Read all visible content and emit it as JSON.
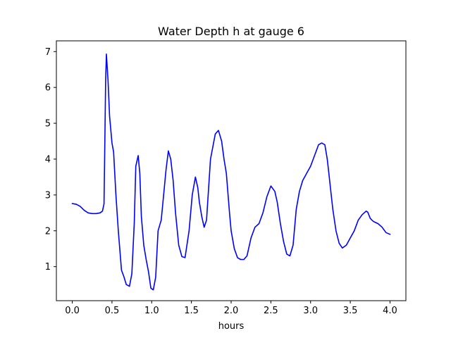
{
  "chart_data": {
    "type": "line",
    "title": "Water Depth h at gauge 6",
    "xlabel": "hours",
    "ylabel": "",
    "xlim": [
      -0.2,
      4.2
    ],
    "ylim": [
      0.05,
      7.3
    ],
    "xticks": [
      0.0,
      0.5,
      1.0,
      1.5,
      2.0,
      2.5,
      3.0,
      3.5,
      4.0
    ],
    "xtick_labels": [
      "0.0",
      "0.5",
      "1.0",
      "1.5",
      "2.0",
      "2.5",
      "3.0",
      "3.5",
      "4.0"
    ],
    "yticks": [
      1,
      2,
      3,
      4,
      5,
      6,
      7
    ],
    "ytick_labels": [
      "1",
      "2",
      "3",
      "4",
      "5",
      "6",
      "7"
    ],
    "grid": false,
    "series": [
      {
        "color": "#0000ff",
        "x": [
          0.0,
          0.05,
          0.1,
          0.15,
          0.2,
          0.25,
          0.3,
          0.35,
          0.38,
          0.4,
          0.41,
          0.42,
          0.43,
          0.45,
          0.47,
          0.5,
          0.52,
          0.55,
          0.58,
          0.62,
          0.65,
          0.68,
          0.72,
          0.75,
          0.78,
          0.8,
          0.83,
          0.85,
          0.87,
          0.9,
          0.93,
          0.96,
          0.99,
          1.02,
          1.05,
          1.08,
          1.12,
          1.15,
          1.18,
          1.21,
          1.24,
          1.27,
          1.3,
          1.34,
          1.38,
          1.42,
          1.47,
          1.51,
          1.55,
          1.58,
          1.6,
          1.63,
          1.66,
          1.69,
          1.72,
          1.74,
          1.77,
          1.8,
          1.84,
          1.88,
          1.91,
          1.94,
          1.98,
          2.0,
          2.04,
          2.08,
          2.12,
          2.16,
          2.2,
          2.25,
          2.3,
          2.35,
          2.4,
          2.45,
          2.5,
          2.55,
          2.58,
          2.62,
          2.66,
          2.7,
          2.74,
          2.78,
          2.82,
          2.86,
          2.9,
          2.95,
          3.0,
          3.05,
          3.1,
          3.14,
          3.18,
          3.21,
          3.23,
          3.25,
          3.28,
          3.32,
          3.36,
          3.4,
          3.45,
          3.5,
          3.55,
          3.6,
          3.65,
          3.7,
          3.72,
          3.75,
          3.78,
          3.8,
          3.85,
          3.9,
          3.95,
          4.0
        ],
        "y": [
          2.76,
          2.74,
          2.68,
          2.57,
          2.5,
          2.48,
          2.48,
          2.5,
          2.55,
          2.75,
          4.5,
          6.2,
          6.93,
          6.2,
          5.2,
          4.45,
          4.2,
          3.0,
          2.0,
          0.9,
          0.72,
          0.5,
          0.45,
          0.8,
          2.2,
          3.8,
          4.1,
          3.6,
          2.4,
          1.6,
          1.2,
          0.85,
          0.4,
          0.35,
          0.7,
          2.0,
          2.3,
          3.0,
          3.7,
          4.23,
          4.0,
          3.4,
          2.5,
          1.6,
          1.28,
          1.25,
          2.0,
          3.0,
          3.5,
          3.2,
          2.8,
          2.4,
          2.1,
          2.3,
          3.3,
          4.0,
          4.35,
          4.7,
          4.8,
          4.5,
          4.0,
          3.6,
          2.5,
          2.0,
          1.5,
          1.25,
          1.2,
          1.2,
          1.3,
          1.8,
          2.1,
          2.2,
          2.5,
          2.95,
          3.25,
          3.1,
          2.8,
          2.2,
          1.7,
          1.35,
          1.3,
          1.6,
          2.6,
          3.1,
          3.4,
          3.6,
          3.8,
          4.1,
          4.4,
          4.45,
          4.4,
          4.0,
          3.6,
          3.2,
          2.6,
          2.0,
          1.65,
          1.52,
          1.6,
          1.8,
          2.0,
          2.3,
          2.45,
          2.55,
          2.52,
          2.35,
          2.28,
          2.25,
          2.2,
          2.1,
          1.95,
          1.9
        ]
      }
    ]
  }
}
